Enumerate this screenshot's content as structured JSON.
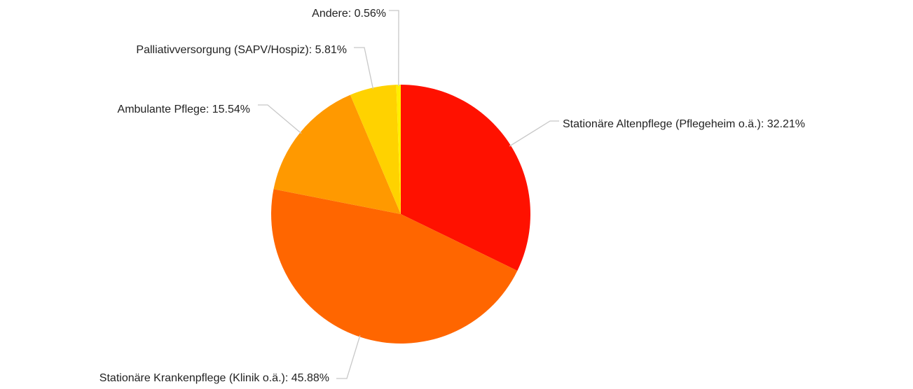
{
  "chart_data": {
    "type": "pie",
    "categories": [
      "Stationäre Altenpflege (Pflegeheim o.ä.)",
      "Stationäre Krankenpflege (Klinik o.ä.)",
      "Ambulante Pflege",
      "Palliativversorgung (SAPV/Hospiz)",
      "Andere"
    ],
    "values": [
      32.21,
      45.88,
      15.54,
      5.81,
      0.56
    ],
    "value_labels": [
      "Stationäre Altenpflege (Pflegeheim o.ä.): 32.21%",
      "Stationäre Krankenpflege (Klinik o.ä.): 45.88%",
      "Ambulante Pflege: 15.54%",
      "Palliativversorgung (SAPV/Hospiz): 5.81%",
      "Andere: 0.56%"
    ],
    "colors": [
      "#ff1100",
      "#ff6600",
      "#ff9900",
      "#ffd200",
      "#ffee00"
    ]
  }
}
